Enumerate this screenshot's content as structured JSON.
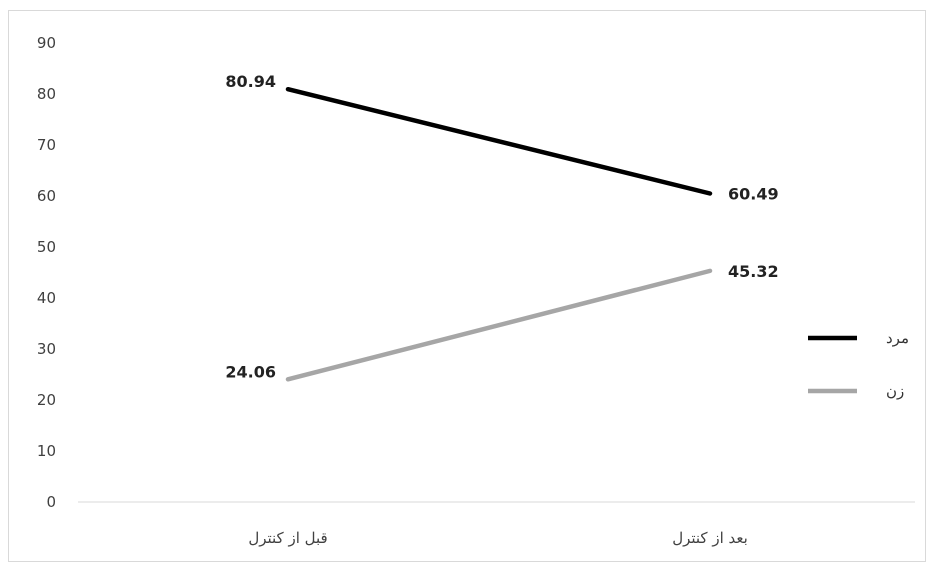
{
  "chart_data": {
    "type": "line",
    "categories": [
      "قبل از کنترل",
      "بعد از کنترل"
    ],
    "series": [
      {
        "name": "مرد",
        "values": [
          80.94,
          60.49
        ],
        "labels": [
          "80.94",
          "60.49"
        ],
        "color": "#000000"
      },
      {
        "name": "زن",
        "values": [
          24.06,
          45.32
        ],
        "labels": [
          "24.06",
          "45.32"
        ],
        "color": "#a6a6a6"
      }
    ],
    "ylim": [
      0,
      90
    ],
    "yticks": [
      "0",
      "10",
      "20",
      "30",
      "40",
      "50",
      "60",
      "70",
      "80",
      "90"
    ],
    "grid": false,
    "legend": "right"
  }
}
